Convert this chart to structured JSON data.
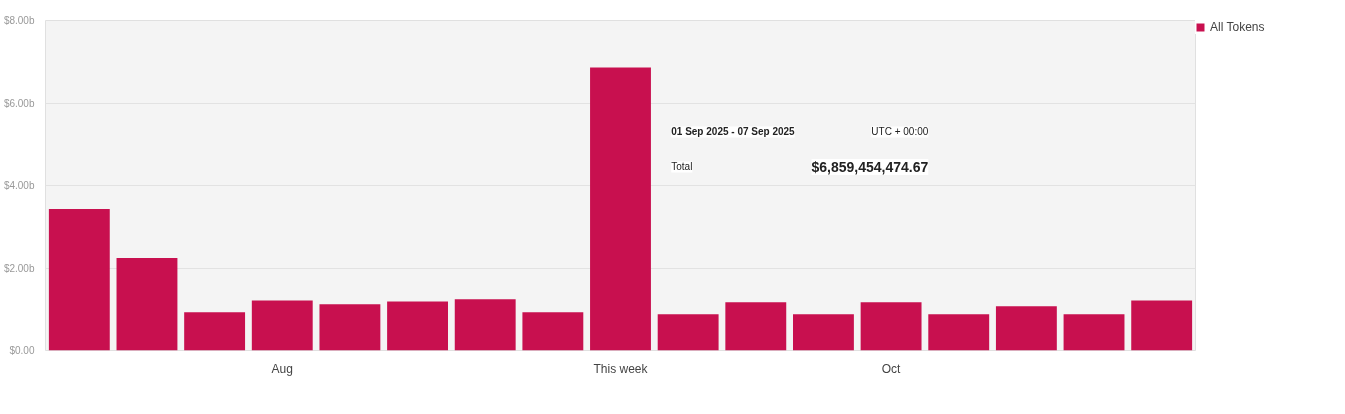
{
  "chart_data": {
    "type": "bar",
    "categories": [
      null,
      null,
      null,
      "Aug",
      null,
      null,
      null,
      null,
      "This week",
      null,
      null,
      null,
      "Oct",
      null,
      null,
      null,
      null
    ],
    "series": [
      {
        "name": "All Tokens",
        "color": "#c8104f",
        "values": [
          3.43,
          2.24,
          0.93,
          1.21,
          1.12,
          1.19,
          1.24,
          0.93,
          6.86,
          0.88,
          1.17,
          0.88,
          1.17,
          0.88,
          1.07,
          0.88,
          1.21
        ]
      }
    ],
    "ylim": [
      0,
      8
    ],
    "yticks": [
      {
        "value": 0,
        "label": "$0.00"
      },
      {
        "value": 2,
        "label": "$2.00b"
      },
      {
        "value": 4,
        "label": "$4.00b"
      },
      {
        "value": 6,
        "label": "$6.00b"
      },
      {
        "value": 8,
        "label": "$8.00b"
      }
    ],
    "grid": "y",
    "legend": "top right",
    "annotations": [
      "01 Sep 2025 - 07 Sep 2025",
      "UTC + 00:00",
      "Total",
      "$6,859,454,474.67"
    ]
  }
}
